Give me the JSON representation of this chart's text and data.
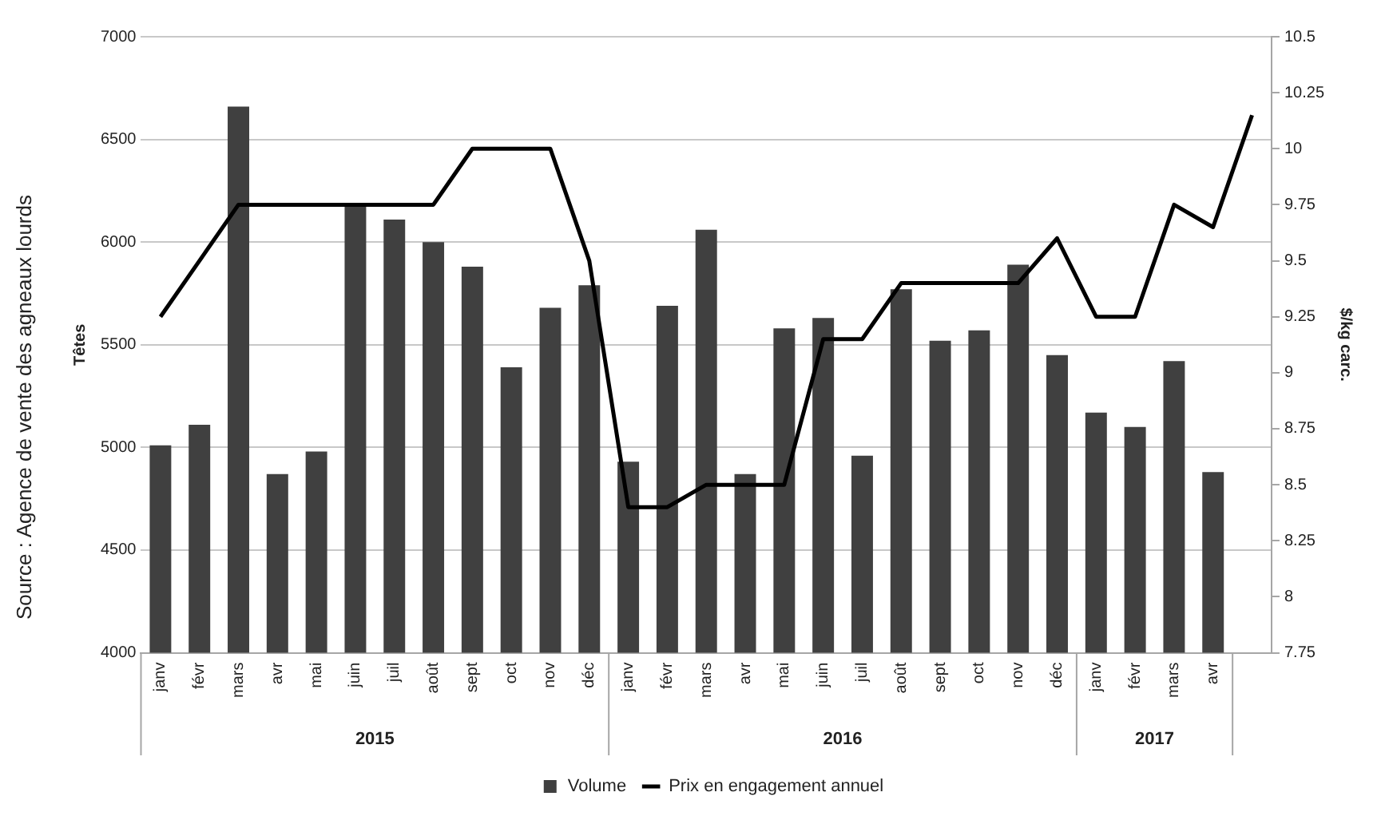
{
  "chart_data": {
    "type": "bar",
    "ylabel": "Têtes",
    "y2label": "$/kg carc.",
    "categories": [
      "janv",
      "févr",
      "mars",
      "avr",
      "mai",
      "juin",
      "juil",
      "août",
      "sept",
      "oct",
      "nov",
      "déc",
      "janv",
      "févr",
      "mars",
      "avr",
      "mai",
      "juin",
      "juil",
      "août",
      "sept",
      "oct",
      "nov",
      "déc",
      "janv",
      "févr",
      "mars",
      "avr",
      null
    ],
    "series": [
      {
        "name": "Volume",
        "color": "#404040",
        "values": [
          5010,
          5110,
          6660,
          4870,
          4980,
          6190,
          6110,
          6000,
          5880,
          5390,
          5680,
          5790,
          4930,
          5690,
          6060,
          4870,
          5580,
          5630,
          4960,
          5770,
          5520,
          5570,
          5890,
          5450,
          5170,
          5100,
          5420,
          4880,
          null
        ]
      },
      {
        "name": "Prix en engagement annuel",
        "type": "line",
        "axis": "y2",
        "color": "#000000",
        "values": [
          9.25,
          9.5,
          9.75,
          9.75,
          9.75,
          9.75,
          9.75,
          9.75,
          10,
          10,
          10,
          9.5,
          8.4,
          8.4,
          8.5,
          8.5,
          8.5,
          9.15,
          9.15,
          9.4,
          9.4,
          9.4,
          9.4,
          9.6,
          9.25,
          9.25,
          9.75,
          9.65,
          10.15
        ]
      }
    ],
    "ylim": [
      4000,
      7000
    ],
    "yticks": [
      4000,
      4500,
      5000,
      5500,
      6000,
      6500,
      7000
    ],
    "y2lim": [
      7.75,
      10.5
    ],
    "y2ticks": [
      7.75,
      8,
      8.25,
      8.5,
      8.75,
      9,
      9.25,
      9.5,
      9.75,
      10,
      10.25,
      10.5
    ],
    "grid": "y",
    "legend": "bottom",
    "marker": "none",
    "line_style": "solid",
    "annotations": [
      "2015",
      "2016",
      "2017",
      "Source : Agence de vente des agneaux lourds"
    ]
  }
}
